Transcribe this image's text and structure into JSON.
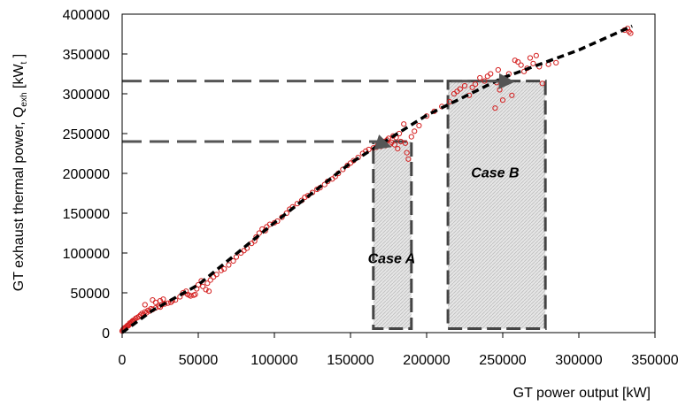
{
  "chart_data": {
    "type": "scatter",
    "xlabel": "GT power output [kW]",
    "ylabel": {
      "text": "GT exhaust thermal power, Q",
      "subscript": "exh",
      "units_open": " [kW",
      "units_subscript": "t",
      "units_close": " ]"
    },
    "xlim": [
      0,
      350000
    ],
    "ylim": [
      0,
      400000
    ],
    "xticks": [
      0,
      50000,
      100000,
      150000,
      200000,
      250000,
      300000,
      350000
    ],
    "yticks": [
      0,
      50000,
      100000,
      150000,
      200000,
      250000,
      300000,
      350000,
      400000
    ],
    "grid": false,
    "colors": {
      "points": "#d42020",
      "fit_line": "#000000",
      "guide_line": "#555555",
      "case_box_border": "#444444",
      "case_box_fill": "#d9d9d9",
      "arrow": "#555555",
      "axis": "#000000"
    },
    "series": [
      {
        "kind": "scatter",
        "marker": "open-circle",
        "points": [
          [
            0,
            2000
          ],
          [
            500,
            3000
          ],
          [
            800,
            4500
          ],
          [
            1200,
            5000
          ],
          [
            1500,
            6000
          ],
          [
            2000,
            5500
          ],
          [
            2500,
            7000
          ],
          [
            3000,
            8000
          ],
          [
            3500,
            9000
          ],
          [
            4000,
            8500
          ],
          [
            4500,
            10000
          ],
          [
            5000,
            12000
          ],
          [
            5500,
            11000
          ],
          [
            6000,
            13000
          ],
          [
            6500,
            14000
          ],
          [
            7000,
            15000
          ],
          [
            7500,
            13500
          ],
          [
            8000,
            16000
          ],
          [
            9000,
            18000
          ],
          [
            10000,
            19000
          ],
          [
            11000,
            20000
          ],
          [
            12000,
            22000
          ],
          [
            13000,
            24000
          ],
          [
            14000,
            23000
          ],
          [
            15000,
            26000
          ],
          [
            16000,
            25000
          ],
          [
            17000,
            28000
          ],
          [
            18000,
            27000
          ],
          [
            19000,
            30000
          ],
          [
            20000,
            29000
          ],
          [
            22000,
            31000
          ],
          [
            24000,
            33000
          ],
          [
            25000,
            32000
          ],
          [
            26000,
            35000
          ],
          [
            28000,
            36000
          ],
          [
            30000,
            37000
          ],
          [
            32000,
            38000
          ],
          [
            33000,
            40000
          ],
          [
            35000,
            41000
          ],
          [
            15000,
            35000
          ],
          [
            20000,
            41000
          ],
          [
            22000,
            38000
          ],
          [
            25000,
            40000
          ],
          [
            27000,
            42000
          ],
          [
            38000,
            45000
          ],
          [
            40000,
            50000
          ],
          [
            42000,
            52000
          ],
          [
            43000,
            48000
          ],
          [
            44000,
            47000
          ],
          [
            45000,
            46000
          ],
          [
            47000,
            47000
          ],
          [
            48000,
            48000
          ],
          [
            49000,
            55000
          ],
          [
            50000,
            60000
          ],
          [
            52000,
            65000
          ],
          [
            53000,
            58000
          ],
          [
            55000,
            54000
          ],
          [
            56000,
            62000
          ],
          [
            57000,
            52000
          ],
          [
            58000,
            66000
          ],
          [
            60000,
            70000
          ],
          [
            62000,
            73000
          ],
          [
            65000,
            78000
          ],
          [
            67000,
            80000
          ],
          [
            70000,
            85000
          ],
          [
            73000,
            90000
          ],
          [
            75000,
            95000
          ],
          [
            78000,
            100000
          ],
          [
            80000,
            103000
          ],
          [
            82000,
            106000
          ],
          [
            85000,
            112000
          ],
          [
            87000,
            115000
          ],
          [
            88000,
            120000
          ],
          [
            90000,
            125000
          ],
          [
            92000,
            130000
          ],
          [
            94000,
            128000
          ],
          [
            95000,
            133000
          ],
          [
            97000,
            136000
          ],
          [
            100000,
            138000
          ],
          [
            102000,
            140000
          ],
          [
            105000,
            145000
          ],
          [
            108000,
            150000
          ],
          [
            110000,
            155000
          ],
          [
            112000,
            158000
          ],
          [
            115000,
            162000
          ],
          [
            118000,
            166000
          ],
          [
            120000,
            170000
          ],
          [
            122000,
            172000
          ],
          [
            125000,
            176000
          ],
          [
            128000,
            180000
          ],
          [
            130000,
            182000
          ],
          [
            133000,
            186000
          ],
          [
            135000,
            190000
          ],
          [
            138000,
            193000
          ],
          [
            140000,
            196000
          ],
          [
            142000,
            200000
          ],
          [
            145000,
            205000
          ],
          [
            148000,
            210000
          ],
          [
            150000,
            213000
          ],
          [
            152000,
            216000
          ],
          [
            155000,
            220000
          ],
          [
            158000,
            225000
          ],
          [
            160000,
            228000
          ],
          [
            162000,
            230000
          ],
          [
            165000,
            232000
          ],
          [
            167000,
            233000
          ],
          [
            168000,
            236000
          ],
          [
            170000,
            234000
          ],
          [
            171000,
            238000
          ],
          [
            172000,
            240000
          ],
          [
            173000,
            235000
          ],
          [
            174000,
            242000
          ],
          [
            175000,
            244000
          ],
          [
            176000,
            237000
          ],
          [
            177000,
            239000
          ],
          [
            178000,
            247000
          ],
          [
            179000,
            236000
          ],
          [
            180000,
            245000
          ],
          [
            181000,
            231000
          ],
          [
            182000,
            250000
          ],
          [
            183000,
            240000
          ],
          [
            185000,
            262000
          ],
          [
            186000,
            238000
          ],
          [
            187000,
            226000
          ],
          [
            188000,
            218000
          ],
          [
            190000,
            246000
          ],
          [
            192000,
            253000
          ],
          [
            195000,
            260000
          ],
          [
            200000,
            272000
          ],
          [
            205000,
            278000
          ],
          [
            210000,
            284000
          ],
          [
            215000,
            290000
          ],
          [
            218000,
            300000
          ],
          [
            220000,
            303000
          ],
          [
            222000,
            306000
          ],
          [
            225000,
            310000
          ],
          [
            228000,
            298000
          ],
          [
            230000,
            308000
          ],
          [
            232000,
            312000
          ],
          [
            235000,
            320000
          ],
          [
            238000,
            316000
          ],
          [
            240000,
            322000
          ],
          [
            242000,
            325000
          ],
          [
            245000,
            282000
          ],
          [
            246000,
            314000
          ],
          [
            247000,
            330000
          ],
          [
            248000,
            305000
          ],
          [
            250000,
            292000
          ],
          [
            252000,
            318000
          ],
          [
            254000,
            325000
          ],
          [
            256000,
            298000
          ],
          [
            258000,
            342000
          ],
          [
            260000,
            340000
          ],
          [
            262000,
            336000
          ],
          [
            264000,
            328000
          ],
          [
            266000,
            332000
          ],
          [
            268000,
            345000
          ],
          [
            270000,
            338000
          ],
          [
            272000,
            348000
          ],
          [
            274000,
            334000
          ],
          [
            276000,
            313000
          ],
          [
            280000,
            337000
          ],
          [
            285000,
            339000
          ],
          [
            330000,
            380000
          ],
          [
            332000,
            382000
          ],
          [
            333000,
            378000
          ],
          [
            334000,
            376000
          ]
        ]
      },
      {
        "kind": "line",
        "style": "dashed",
        "points": [
          [
            0,
            0
          ],
          [
            20000,
            28000
          ],
          [
            50000,
            60000
          ],
          [
            100000,
            138000
          ],
          [
            150000,
            213000
          ],
          [
            200000,
            273000
          ],
          [
            250000,
            320000
          ],
          [
            300000,
            355000
          ],
          [
            335000,
            385000
          ]
        ]
      }
    ],
    "guide_lines": [
      {
        "y": 240000,
        "x_end": 168000
      },
      {
        "y": 316000,
        "x_end": 255000
      }
    ],
    "arrows": [
      {
        "x_from": 166000,
        "y_from": 240000,
        "x_to": 177000,
        "y_to": 233000
      },
      {
        "x_from": 243000,
        "y_from": 316000,
        "x_to": 258000,
        "y_to": 315000
      }
    ],
    "case_boxes": [
      {
        "label": "Case A",
        "x0": 165000,
        "x1": 190000,
        "y0": 5000,
        "y1": 240000,
        "label_x": 177000,
        "label_y": 87000
      },
      {
        "label": "Case B",
        "x0": 214000,
        "x1": 278000,
        "y0": 5000,
        "y1": 316000,
        "label_x": 245000,
        "label_y": 195000
      }
    ]
  }
}
